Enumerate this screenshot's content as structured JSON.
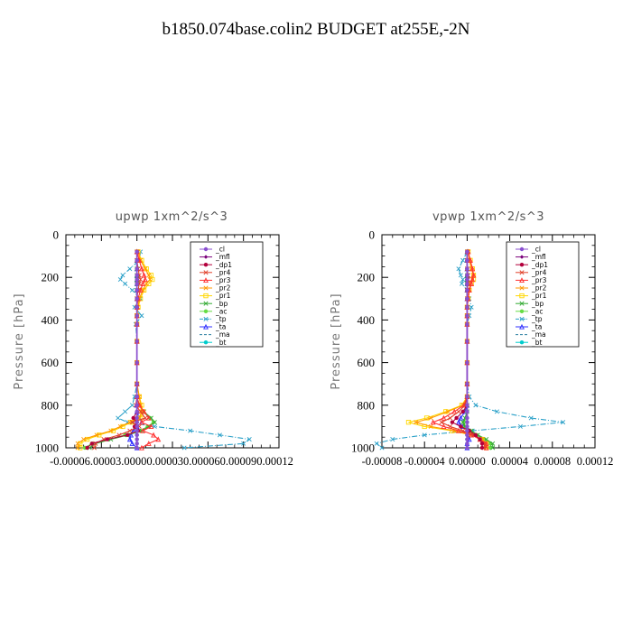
{
  "page": {
    "title": "b1850.074base.colin2  BUDGET at255E,-2N"
  },
  "legend_entries": [
    "_cl",
    "_mfl",
    "_dp1",
    "_pr4",
    "_pr3",
    "_pr2",
    "_pr1",
    "_bp",
    "_ac",
    "_tp",
    "_ta",
    "_ma",
    "_bt"
  ],
  "legend_colors": [
    "#8a4fd0",
    "#7a007a",
    "#b3003c",
    "#e0402a",
    "#ff3030",
    "#ff9900",
    "#ffd700",
    "#33aa33",
    "#66dd44",
    "#2aa0c8",
    "#3030ff",
    "#2a7fa0",
    "#00cccc"
  ],
  "chart_data": [
    {
      "type": "line",
      "title": "upwp   1xm^2/s^3",
      "ylabel": "Pressure [hPa]",
      "ylim": [
        1000,
        0
      ],
      "xlim": [
        -6e-05,
        0.00012
      ],
      "yticks": [
        "0",
        "200",
        "400",
        "600",
        "800",
        "1000"
      ],
      "xticks": [
        "-0.00006",
        "-0.00003",
        "0.00000",
        "0.00003",
        "0.00006",
        "0.00009",
        "0.00012"
      ],
      "x_label_text": "-0.00006.00003.00000.000030.000060.000090.00012",
      "y": [
        80,
        120,
        160,
        190,
        210,
        230,
        260,
        300,
        340,
        380,
        420,
        500,
        600,
        700,
        760,
        800,
        830,
        860,
        880,
        900,
        920,
        940,
        960,
        980,
        1000
      ],
      "series": [
        {
          "name": "_cl",
          "values": [
            0,
            0,
            0,
            0,
            0,
            0,
            0,
            0,
            0,
            0,
            0,
            0,
            0,
            0,
            0,
            0,
            0,
            0,
            0,
            0,
            0,
            0,
            0,
            0,
            0
          ]
        },
        {
          "name": "_mfl",
          "values": [
            0,
            0,
            0,
            0,
            0,
            0,
            0,
            0,
            0,
            0,
            0,
            0,
            0,
            0,
            0,
            0,
            0,
            0,
            0,
            0,
            0,
            0,
            0,
            0,
            0
          ]
        },
        {
          "name": "_dp1",
          "values": [
            0,
            0,
            0,
            0,
            0,
            0,
            0,
            0,
            0,
            0,
            0,
            0,
            0,
            0,
            0,
            0,
            0,
            -3e-06,
            0,
            -2e-06,
            1e-06,
            -8e-06,
            -2.5e-05,
            -3.8e-05,
            -4.2e-05
          ]
        },
        {
          "name": "_pr4",
          "values": [
            0,
            0,
            1e-06,
            2e-06,
            3e-06,
            2e-06,
            1e-06,
            0,
            0,
            0,
            0,
            0,
            0,
            0,
            0,
            -1e-06,
            3e-06,
            7e-06,
            -4e-06,
            2e-06,
            -6e-06,
            -1.5e-05,
            -2.8e-05,
            -3.5e-05,
            -3.6e-05
          ]
        },
        {
          "name": "_pr3",
          "values": [
            0,
            2e-06,
            4e-06,
            6e-06,
            7e-06,
            5e-06,
            3e-06,
            1e-06,
            0,
            0,
            0,
            0,
            0,
            0,
            0,
            2e-06,
            6e-06,
            1e-05,
            4e-06,
            1.2e-05,
            5e-06,
            1.4e-05,
            1.8e-05,
            1e-05,
            4e-06
          ]
        },
        {
          "name": "_pr2",
          "values": [
            1e-06,
            3e-06,
            7e-06,
            1e-05,
            1.1e-05,
            8e-06,
            5e-06,
            2e-06,
            1e-06,
            0,
            0,
            0,
            0,
            0,
            2e-06,
            3e-06,
            4e-06,
            2e-06,
            -6e-06,
            -1.4e-05,
            -2.2e-05,
            -3.4e-05,
            -4.5e-05,
            -5e-05,
            -5e-05
          ]
        },
        {
          "name": "_pr1",
          "values": [
            1e-06,
            4e-06,
            8e-06,
            1.2e-05,
            1.3e-05,
            1e-05,
            6e-06,
            3e-06,
            1e-06,
            0,
            0,
            0,
            0,
            0,
            2e-06,
            4e-06,
            5e-06,
            3e-06,
            -5e-06,
            -1.2e-05,
            -2e-05,
            -3.2e-05,
            -4.2e-05,
            -4.8e-05,
            -4.8e-05
          ]
        },
        {
          "name": "_bp",
          "values": [
            0,
            0,
            0,
            0,
            0,
            0,
            0,
            0,
            0,
            0,
            0,
            0,
            0,
            0,
            0,
            2e-06,
            6e-06,
            1.2e-05,
            1.5e-05,
            1e-05,
            4e-06,
            -8e-06,
            -2.2e-05,
            -3.5e-05,
            -4e-05
          ]
        },
        {
          "name": "_ac",
          "values": [
            0,
            0,
            0,
            0,
            0,
            0,
            0,
            0,
            0,
            0,
            0,
            0,
            0,
            0,
            0,
            2e-06,
            5e-06,
            1.1e-05,
            1.4e-05,
            9e-06,
            3e-06,
            -1e-05,
            -2.4e-05,
            -3.8e-05,
            -4.4e-05
          ]
        },
        {
          "name": "_tp",
          "values": [
            3e-06,
            2e-06,
            -6e-06,
            -1.2e-05,
            -1.4e-05,
            -1e-05,
            -4e-06,
            3e-06,
            -2e-06,
            4e-06,
            -1e-06,
            0,
            0,
            0,
            -2e-06,
            -4e-06,
            -1e-05,
            -1.6e-05,
            -8e-06,
            1.5e-05,
            4.5e-05,
            7e-05,
            9.5e-05,
            9e-05,
            4e-05
          ]
        },
        {
          "name": "_ta",
          "values": [
            0,
            0,
            0,
            0,
            0,
            0,
            0,
            0,
            0,
            0,
            0,
            0,
            0,
            0,
            0,
            0,
            0,
            2e-06,
            4e-06,
            0,
            -3e-06,
            -5e-06,
            -6e-06,
            -4e-06,
            0
          ]
        },
        {
          "name": "_ma",
          "values": [
            0,
            0,
            0,
            0,
            0,
            0,
            0,
            0,
            0,
            0,
            0,
            0,
            0,
            0,
            0,
            0,
            0,
            0,
            0,
            0,
            0,
            0,
            0,
            0,
            0
          ]
        },
        {
          "name": "_bt",
          "values": [
            0,
            0,
            0,
            0,
            0,
            0,
            0,
            0,
            0,
            0,
            0,
            0,
            0,
            0,
            0,
            0,
            0,
            0,
            0,
            0,
            0,
            0,
            0,
            0,
            0
          ]
        }
      ]
    },
    {
      "type": "line",
      "title": "vpwp   1xm^2/s^3",
      "ylabel": "Pressure [hPa]",
      "ylim": [
        1000,
        0
      ],
      "xlim": [
        -8e-05,
        0.00012
      ],
      "yticks": [
        "0",
        "200",
        "400",
        "600",
        "800",
        "1000"
      ],
      "xticks": [
        "-0.00008",
        "-0.00004",
        "0.00000",
        "0.00004",
        "0.00008",
        "0.00012"
      ],
      "y": [
        80,
        120,
        160,
        190,
        210,
        230,
        260,
        300,
        340,
        380,
        420,
        500,
        600,
        700,
        760,
        800,
        830,
        860,
        880,
        900,
        920,
        940,
        960,
        980,
        1000
      ],
      "series": [
        {
          "name": "_cl",
          "values": [
            0,
            0,
            0,
            0,
            0,
            0,
            0,
            0,
            0,
            0,
            0,
            0,
            0,
            0,
            0,
            0,
            0,
            0,
            0,
            0,
            0,
            0,
            0,
            0,
            0
          ]
        },
        {
          "name": "_mfl",
          "values": [
            0,
            0,
            0,
            0,
            0,
            0,
            0,
            0,
            0,
            0,
            0,
            0,
            0,
            0,
            0,
            0,
            0,
            0,
            0,
            0,
            0,
            0,
            0,
            0,
            0
          ]
        },
        {
          "name": "_dp1",
          "values": [
            0,
            0,
            0,
            0,
            0,
            0,
            0,
            0,
            0,
            0,
            0,
            0,
            0,
            0,
            0,
            0,
            -4e-06,
            -1e-05,
            -1.4e-05,
            -6e-06,
            2e-06,
            8e-06,
            1.2e-05,
            1.4e-05,
            1.4e-05
          ]
        },
        {
          "name": "_pr4",
          "values": [
            0,
            0,
            0,
            1e-06,
            1e-06,
            1e-06,
            0,
            0,
            0,
            0,
            0,
            0,
            0,
            0,
            0,
            -2e-06,
            -8e-06,
            -1.6e-05,
            -2.4e-05,
            -1.6e-05,
            -4e-06,
            6e-06,
            1.2e-05,
            1.6e-05,
            1.6e-05
          ]
        },
        {
          "name": "_pr3",
          "values": [
            1e-06,
            3e-06,
            5e-06,
            6e-06,
            5e-06,
            4e-06,
            2e-06,
            1e-06,
            0,
            0,
            0,
            0,
            0,
            0,
            0,
            -3e-06,
            -1.2e-05,
            -2.2e-05,
            -3.2e-05,
            -2.2e-05,
            -8e-06,
            4e-06,
            1.2e-05,
            1.8e-05,
            1.8e-05
          ]
        },
        {
          "name": "_pr2",
          "values": [
            1e-06,
            2e-06,
            4e-06,
            6e-06,
            5e-06,
            3e-06,
            2e-06,
            1e-06,
            0,
            0,
            0,
            0,
            0,
            0,
            0,
            -4e-06,
            -1.8e-05,
            -3.4e-05,
            -4.8e-05,
            -3.4e-05,
            -1.2e-05,
            4e-06,
            1.4e-05,
            1.8e-05,
            1.8e-05
          ]
        },
        {
          "name": "_pr1",
          "values": [
            1e-06,
            3e-06,
            5e-06,
            6e-06,
            6e-06,
            4e-06,
            2e-06,
            1e-06,
            0,
            0,
            0,
            0,
            0,
            0,
            0,
            -5e-06,
            -2e-05,
            -3.8e-05,
            -5.5e-05,
            -4e-05,
            -1.4e-05,
            4e-06,
            1.4e-05,
            1.8e-05,
            1.8e-05
          ]
        },
        {
          "name": "_bp",
          "values": [
            0,
            0,
            0,
            0,
            0,
            0,
            0,
            0,
            0,
            0,
            0,
            0,
            0,
            0,
            0,
            0,
            0,
            -2e-06,
            -4e-06,
            -2e-06,
            4e-06,
            1e-05,
            1.8e-05,
            2.4e-05,
            2.4e-05
          ]
        },
        {
          "name": "_ac",
          "values": [
            0,
            0,
            0,
            0,
            0,
            0,
            0,
            0,
            0,
            0,
            0,
            0,
            0,
            0,
            0,
            0,
            0,
            -1e-06,
            -3e-06,
            -2e-06,
            3e-06,
            9e-06,
            1.6e-05,
            2.2e-05,
            2.2e-05
          ]
        },
        {
          "name": "_tp",
          "values": [
            0,
            -4e-06,
            -8e-06,
            -6e-06,
            -4e-06,
            -5e-06,
            0,
            2e-06,
            4e-06,
            2e-06,
            0,
            0,
            0,
            0,
            2e-06,
            8e-06,
            2.8e-05,
            6e-05,
            9e-05,
            5e-05,
            5e-06,
            -4e-05,
            -7e-05,
            -8.5e-05,
            -8e-05
          ]
        },
        {
          "name": "_ta",
          "values": [
            0,
            0,
            0,
            0,
            0,
            0,
            0,
            0,
            0,
            0,
            0,
            0,
            0,
            0,
            0,
            0,
            -2e-06,
            -6e-06,
            -8e-06,
            -4e-06,
            2e-06,
            3e-06,
            2e-06,
            0,
            0
          ]
        },
        {
          "name": "_ma",
          "values": [
            0,
            0,
            0,
            0,
            0,
            0,
            0,
            0,
            0,
            0,
            0,
            0,
            0,
            0,
            0,
            0,
            0,
            0,
            0,
            0,
            0,
            0,
            0,
            0,
            0
          ]
        },
        {
          "name": "_bt",
          "values": [
            0,
            0,
            0,
            0,
            0,
            0,
            0,
            0,
            0,
            0,
            0,
            0,
            0,
            0,
            0,
            0,
            0,
            0,
            0,
            0,
            0,
            0,
            0,
            0,
            0
          ]
        }
      ]
    }
  ]
}
